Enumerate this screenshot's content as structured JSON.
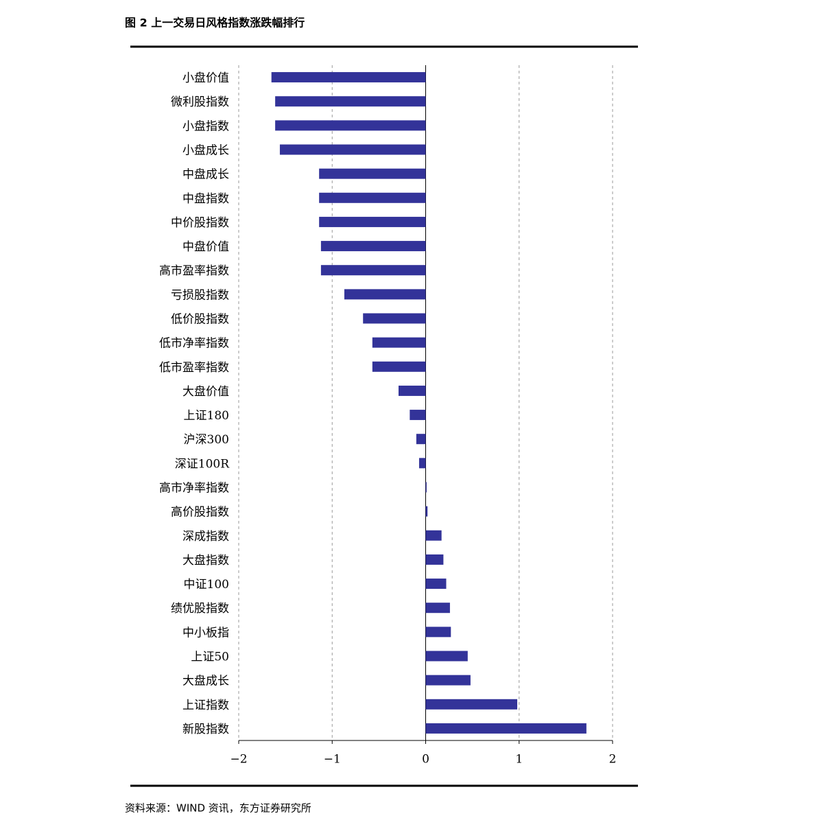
{
  "chart_data": {
    "type": "barh",
    "title": "图 2 上一交易日风格指数涨跌幅排行",
    "source": "资料来源：WIND 资讯，东方证券研究所",
    "categories": [
      "小盘价值",
      "微利股指数",
      "小盘指数",
      "小盘成长",
      "中盘成长",
      "中盘指数",
      "中价股指数",
      "中盘价值",
      "高市盈率指数",
      "亏损股指数",
      "低价股指数",
      "低市净率指数",
      "低市盈率指数",
      "大盘价值",
      "上证180",
      "沪深300",
      "深证100R",
      "高市净率指数",
      "高价股指数",
      "深成指数",
      "大盘指数",
      "中证100",
      "绩优股指数",
      "中小板指",
      "上证50",
      "大盘成长",
      "上证指数",
      "新股指数"
    ],
    "values": [
      -1.65,
      -1.61,
      -1.61,
      -1.56,
      -1.14,
      -1.14,
      -1.14,
      -1.12,
      -1.12,
      -0.87,
      -0.67,
      -0.57,
      -0.57,
      -0.29,
      -0.17,
      -0.1,
      -0.07,
      0.01,
      0.02,
      0.17,
      0.19,
      0.22,
      0.26,
      0.27,
      0.45,
      0.48,
      0.98,
      1.72
    ],
    "color": "#333399",
    "xlim": [
      -2,
      2
    ],
    "xticks": [
      {
        "value": -2,
        "label": "−2"
      },
      {
        "value": -1,
        "label": "−1"
      },
      0,
      1,
      2
    ],
    "grid": true
  }
}
